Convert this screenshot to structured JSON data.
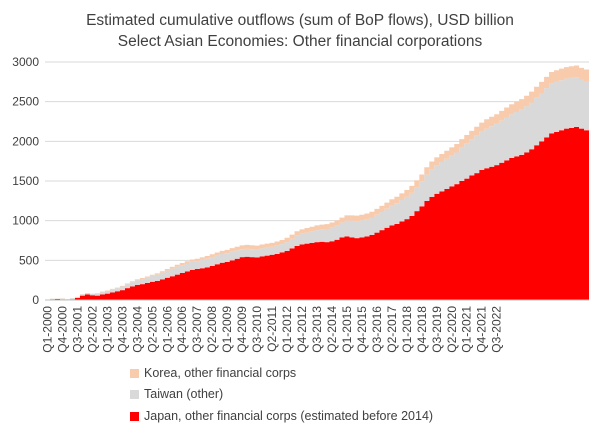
{
  "chart_data": {
    "type": "area",
    "stacked": true,
    "title": "Estimated cumulative outflows (sum of BoP flows), USD billion",
    "subtitle": "Select Asian Economies: Other financial corporations",
    "xlabel": "",
    "ylabel": "",
    "ylim": [
      0,
      3000
    ],
    "yticks": [
      0,
      500,
      1000,
      1500,
      2000,
      2500,
      3000
    ],
    "x_tick_labels": [
      "Q1-2000",
      "Q4-2000",
      "Q3-2001",
      "Q2-2002",
      "Q1-2003",
      "Q4-2003",
      "Q3-2004",
      "Q2-2005",
      "Q1-2006",
      "Q4-2006",
      "Q3-2007",
      "Q2-2008",
      "Q1-2009",
      "Q4-2009",
      "Q3-2010",
      "Q2-2011",
      "Q1-2012",
      "Q4-2012",
      "Q3-2013",
      "Q2-2014",
      "Q1-2015",
      "Q4-2015",
      "Q3-2016",
      "Q2-2017",
      "Q1-2018",
      "Q4-2018",
      "Q3-2019",
      "Q2-2020",
      "Q1-2021",
      "Q4-2021",
      "Q3-2022"
    ],
    "grid": "horizontal",
    "legend_position": "bottom",
    "colors": {
      "japan": "#ff0000",
      "taiwan": "#d9d9d9",
      "korea": "#f8cbad",
      "gridline": "#d9d9d9",
      "axis": "#bfbfbf",
      "text": "#404040"
    },
    "series": [
      {
        "key": "japan",
        "name": "Japan, other financial corps (estimated before 2014)",
        "values": [
          0,
          10,
          12,
          8,
          0,
          10,
          25,
          55,
          70,
          60,
          55,
          70,
          80,
          95,
          110,
          125,
          150,
          170,
          190,
          200,
          215,
          230,
          240,
          260,
          280,
          300,
          320,
          340,
          360,
          380,
          390,
          400,
          410,
          430,
          450,
          470,
          480,
          500,
          520,
          540,
          545,
          540,
          535,
          550,
          560,
          570,
          580,
          600,
          620,
          650,
          680,
          700,
          710,
          720,
          730,
          735,
          730,
          740,
          760,
          790,
          800,
          790,
          780,
          790,
          800,
          820,
          850,
          880,
          910,
          940,
          960,
          990,
          1020,
          1060,
          1120,
          1180,
          1250,
          1300,
          1340,
          1370,
          1400,
          1430,
          1460,
          1500,
          1530,
          1570,
          1600,
          1640,
          1660,
          1680,
          1700,
          1730,
          1760,
          1790,
          1810,
          1830,
          1860,
          1900,
          1950,
          2000,
          2050,
          2100,
          2120,
          2140,
          2160,
          2170,
          2180,
          2160,
          2140
        ]
      },
      {
        "key": "taiwan",
        "name": "Taiwan (other)",
        "values": [
          5,
          5,
          5,
          10,
          10,
          12,
          12,
          15,
          15,
          18,
          25,
          30,
          35,
          40,
          40,
          45,
          50,
          55,
          60,
          65,
          70,
          75,
          80,
          85,
          90,
          95,
          100,
          100,
          100,
          100,
          100,
          105,
          110,
          110,
          110,
          110,
          110,
          110,
          105,
          100,
          100,
          100,
          100,
          100,
          100,
          100,
          105,
          105,
          110,
          120,
          130,
          135,
          140,
          145,
          150,
          155,
          165,
          175,
          180,
          185,
          200,
          210,
          215,
          215,
          220,
          220,
          225,
          230,
          240,
          250,
          260,
          270,
          280,
          290,
          300,
          310,
          330,
          350,
          360,
          370,
          380,
          390,
          400,
          420,
          440,
          450,
          470,
          480,
          500,
          510,
          520,
          530,
          540,
          550,
          560,
          570,
          580,
          590,
          600,
          610,
          620,
          630,
          630,
          630,
          630,
          630,
          630,
          620,
          620
        ]
      },
      {
        "key": "korea",
        "name": "Korea, other financial corps",
        "values": [
          2,
          2,
          2,
          2,
          2,
          2,
          3,
          3,
          3,
          3,
          5,
          5,
          5,
          6,
          6,
          8,
          8,
          10,
          10,
          12,
          12,
          14,
          15,
          18,
          20,
          22,
          24,
          26,
          28,
          30,
          30,
          32,
          34,
          36,
          38,
          40,
          42,
          44,
          46,
          48,
          50,
          50,
          50,
          50,
          50,
          50,
          52,
          52,
          54,
          54,
          56,
          56,
          58,
          58,
          60,
          60,
          62,
          62,
          64,
          64,
          66,
          66,
          68,
          70,
          70,
          72,
          74,
          76,
          78,
          80,
          82,
          84,
          86,
          88,
          90,
          92,
          94,
          96,
          98,
          100,
          102,
          104,
          106,
          108,
          110,
          112,
          114,
          116,
          118,
          120,
          122,
          124,
          126,
          128,
          130,
          132,
          134,
          136,
          138,
          140,
          142,
          144,
          146,
          146,
          146,
          146,
          146,
          146,
          146
        ]
      }
    ]
  }
}
